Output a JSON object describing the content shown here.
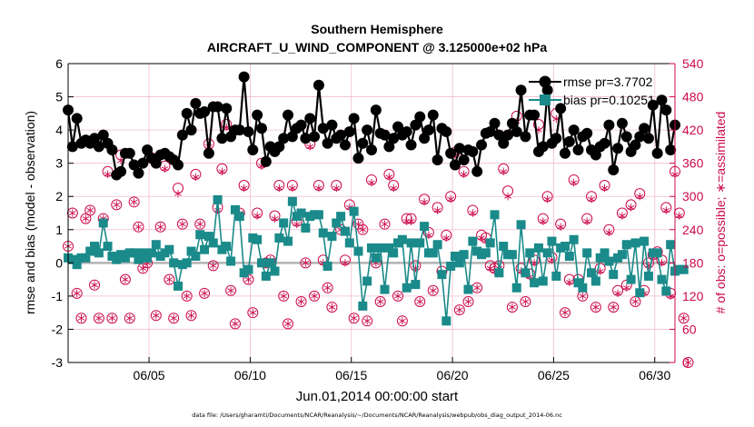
{
  "chart_data": {
    "type": "line",
    "title": "Southern Hemisphere",
    "subtitle": "AIRCRAFT_U_WIND_COMPONENT @ 3.125000e+02 hPa",
    "xlabel": "Jun.01,2014 00:00:00 start",
    "ylabel": "rmse and bias (model - observation)",
    "ylabel_right": "# of obs: o=possible; ∗=assimilated",
    "footnote": "data file: /Users/gharamti/Documents/NCAR/Reanalysis/~/Documents/NCAR/Reanalysis/webpub/obs_diag_output_2014-06.nc",
    "xlim": [
      1,
      31
    ],
    "ylim": [
      -3,
      6
    ],
    "ylim_right": [
      0,
      540
    ],
    "x_ticks": [
      5,
      10,
      15,
      20,
      25,
      30
    ],
    "x_tick_labels": [
      "06/05",
      "06/10",
      "06/15",
      "06/20",
      "06/25",
      "06/30"
    ],
    "y_ticks": [
      -3,
      -2,
      -1,
      0,
      1,
      2,
      3,
      4,
      5,
      6
    ],
    "y_tick_labels": [
      "-3",
      "-2",
      "-1",
      "0",
      "1",
      "2",
      "3",
      "4",
      "5",
      "6"
    ],
    "y_ticks_right": [
      0,
      60,
      120,
      180,
      240,
      300,
      360,
      420,
      480,
      540
    ],
    "y_tick_labels_right": [
      "0",
      "60",
      "120",
      "180",
      "240",
      "300",
      "360",
      "420",
      "480",
      "540"
    ],
    "grid": true,
    "zero_line": 0,
    "legend_position": "top-right",
    "colors": {
      "rmse": "#000000",
      "bias": "#1a8a8a",
      "obs": "#cc0a4a",
      "grid": "#f2bcd3",
      "zero": "#b3b3b3"
    },
    "series": [
      {
        "name": "rmse",
        "legend": "rmse pr=3.7702",
        "marker": "circle",
        "values": [
          4.6,
          3.5,
          4.35,
          3.6,
          3.7,
          3.6,
          3.75,
          3.5,
          3.85,
          3.6,
          3.4,
          2.65,
          2.75,
          3.3,
          3.3,
          2.95,
          2.7,
          3.0,
          3.4,
          3.15,
          3.0,
          3.25,
          3.3,
          3.2,
          3.1,
          2.95,
          3.85,
          4.5,
          4.0,
          4.8,
          4.5,
          4.55,
          3.3,
          4.7,
          4.7,
          3.75,
          4.65,
          3.8,
          4.0,
          4.0,
          5.6,
          3.95,
          3.4,
          4.45,
          4.05,
          3.05,
          3.5,
          3.35,
          3.5,
          3.75,
          4.45,
          3.8,
          4.05,
          4.15,
          3.75,
          4.35,
          3.8,
          5.35,
          4.05,
          3.6,
          4.15,
          3.75,
          3.85,
          3.55,
          3.95,
          4.35,
          3.15,
          3.6,
          4.0,
          3.4,
          4.6,
          3.9,
          3.85,
          3.5,
          3.75,
          4.1,
          3.85,
          3.95,
          3.55,
          4.15,
          4.4,
          3.75,
          4.0,
          4.45,
          3.1,
          4.05,
          3.95,
          3.3,
          2.95,
          3.45,
          3.1,
          3.4,
          3.35,
          2.75,
          3.55,
          3.9,
          3.95,
          4.2,
          3.85,
          3.6,
          3.85,
          4.2,
          3.95,
          5.2,
          3.8,
          4.45,
          4.45,
          3.35,
          3.5,
          5.2,
          3.6,
          3.75,
          4.65,
          3.3,
          3.65,
          4.0,
          3.4,
          3.8,
          3.9,
          3.4,
          3.25,
          3.5,
          3.6,
          4.15,
          2.8,
          3.45,
          4.2,
          3.8,
          3.35,
          3.55,
          3.8,
          4.05,
          3.75,
          4.75,
          3.3,
          4.9,
          4.6,
          3.4,
          4.15
        ]
      },
      {
        "name": "bias",
        "legend": "bias pr=0.10251",
        "marker": "square",
        "values": [
          0.15,
          0.1,
          -0.05,
          0.15,
          0.15,
          0.35,
          0.5,
          0.3,
          1.2,
          0.5,
          0.2,
          0.1,
          0.25,
          0.15,
          0.3,
          0.3,
          0.1,
          0.3,
          0.15,
          0.3,
          0.55,
          0.2,
          0.3,
          0.4,
          0.0,
          -0.7,
          -0.05,
          0.0,
          0.35,
          0.2,
          0.85,
          0.4,
          0.8,
          0.6,
          1.9,
          0.4,
          0.5,
          0.05,
          1.6,
          1.4,
          -0.3,
          -0.2,
          0.75,
          0.7,
          0.0,
          -0.4,
          0.0,
          -0.25,
          0.75,
          1.2,
          0.65,
          1.85,
          1.4,
          1.5,
          1.05,
          1.4,
          1.45,
          1.45,
          0.9,
          -0.1,
          0.8,
          1.2,
          1.4,
          0.95,
          0.6,
          1.55,
          0.35,
          -1.3,
          -0.55,
          0.45,
          0.15,
          0.45,
          -0.8,
          0.45,
          0.3,
          0.6,
          0.7,
          -0.75,
          0.6,
          -0.65,
          0.6,
          1.1,
          0.3,
          0.3,
          0.55,
          -0.35,
          -1.75,
          -0.1,
          0.2,
          0.0,
          0.25,
          -0.8,
          0.65,
          0.35,
          0.25,
          0.3,
          0.6,
          1.45,
          -0.3,
          0.5,
          0.25,
          0.25,
          -0.75,
          1.15,
          -0.3,
          0.3,
          -0.6,
          0.45,
          -0.55,
          0.3,
          0.65,
          -0.4,
          0.45,
          0.5,
          0.2,
          0.7,
          -0.6,
          -0.75,
          0.3,
          -0.3,
          -0.55,
          0.15,
          0.3,
          0.05,
          -0.35,
          0.15,
          0.25,
          0.55,
          -0.5,
          0.6,
          -0.9,
          0.65,
          -0.4,
          0.3,
          0.3,
          -0.5,
          -0.85,
          0.55,
          -0.25,
          -0.2,
          -0.2
        ]
      },
      {
        "name": "obs_possible",
        "axis": "right",
        "marker": "circle-open",
        "values": [
          210,
          270,
          125,
          80,
          260,
          275,
          140,
          80,
          260,
          345,
          80,
          285,
          375,
          150,
          80,
          290,
          245,
          170,
          180,
          370,
          85,
          245,
          355,
          150,
          80,
          315,
          250,
          120,
          85,
          340,
          250,
          125,
          395,
          175,
          280,
          350,
          430,
          130,
          70,
          270,
          320,
          150,
          90,
          270,
          360,
          180,
          185,
          265,
          320,
          120,
          70,
          320,
          255,
          110,
          180,
          395,
          120,
          320,
          185,
          135,
          100,
          320,
          240,
          185,
          285,
          80,
          250,
          240,
          75,
          330,
          180,
          110,
          250,
          340,
          320,
          120,
          75,
          260,
          260,
          175,
          110,
          295,
          235,
          130,
          280,
          165,
          230,
          300,
          380,
          95,
          345,
          110,
          275,
          135,
          230,
          225,
          175,
          170,
          175,
          350,
          310,
          100,
          445,
          170,
          110,
          160,
          185,
          430,
          260,
          300,
          190,
          450,
          250,
          90,
          150,
          330,
          150,
          120,
          260,
          300,
          100,
          170,
          320,
          240,
          100,
          130,
          270,
          140,
          285,
          110,
          305,
          130,
          180,
          195,
          200,
          185,
          280,
          125,
          345,
          270,
          80,
          0
        ]
      },
      {
        "name": "obs_assimilated",
        "axis": "right",
        "marker": "asterisk",
        "values": [
          210,
          270,
          125,
          80,
          260,
          275,
          140,
          80,
          260,
          340,
          80,
          285,
          365,
          150,
          80,
          290,
          245,
          170,
          180,
          365,
          85,
          245,
          350,
          150,
          80,
          305,
          250,
          120,
          85,
          335,
          250,
          125,
          390,
          175,
          275,
          345,
          425,
          130,
          70,
          270,
          315,
          150,
          90,
          265,
          355,
          180,
          185,
          260,
          315,
          120,
          70,
          315,
          250,
          110,
          180,
          390,
          120,
          315,
          180,
          135,
          100,
          315,
          240,
          180,
          280,
          80,
          250,
          240,
          75,
          325,
          180,
          110,
          250,
          335,
          315,
          120,
          75,
          255,
          255,
          170,
          110,
          290,
          230,
          130,
          275,
          160,
          225,
          295,
          375,
          95,
          340,
          110,
          270,
          135,
          225,
          220,
          170,
          165,
          170,
          345,
          300,
          100,
          435,
          165,
          110,
          155,
          180,
          420,
          255,
          295,
          185,
          440,
          245,
          90,
          145,
          325,
          145,
          120,
          255,
          295,
          100,
          165,
          315,
          235,
          100,
          125,
          265,
          135,
          280,
          110,
          300,
          125,
          175,
          190,
          195,
          180,
          275,
          120,
          340,
          265,
          80,
          0
        ]
      }
    ]
  }
}
